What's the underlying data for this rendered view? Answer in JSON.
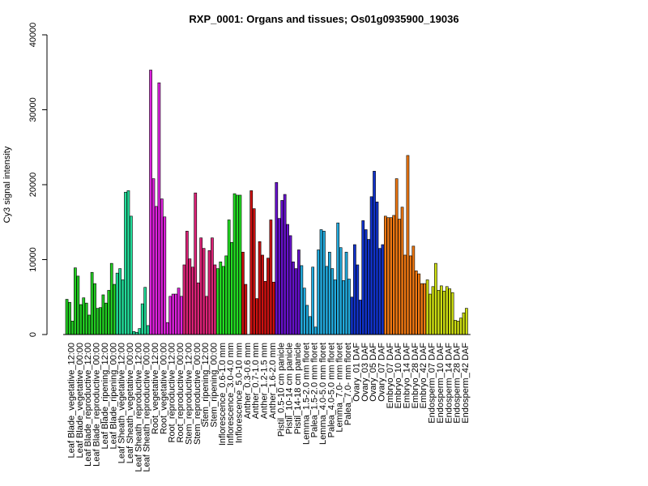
{
  "chart_data": {
    "type": "bar",
    "title": "RXP_0001: Organs and tissues; Os01g0935900_19036",
    "xlabel": "",
    "ylabel": "Cy3 signal intensity",
    "ylim": [
      0,
      40000
    ],
    "yticks": [
      0,
      10000,
      20000,
      30000,
      40000
    ],
    "grid": false,
    "legend": "none",
    "groups": [
      {
        "label": "Leaf Blade_vegetative_12:00",
        "color": "#22cc22",
        "values": [
          4700,
          4300,
          1800
        ]
      },
      {
        "label": "Leaf Blade_vegetative_00:00",
        "color": "#22cc22",
        "values": [
          8900,
          7800,
          4000
        ]
      },
      {
        "label": "Leaf Blade_reproductive_12:00",
        "color": "#22cc22",
        "values": [
          4900,
          4200,
          2600
        ]
      },
      {
        "label": "Leaf Blade_reproductive_00:00",
        "color": "#22cc22",
        "values": [
          8300,
          6800,
          3500
        ]
      },
      {
        "label": "Leaf Blade_ripening_12:00",
        "color": "#22cc22",
        "values": [
          3600,
          5300,
          4200
        ]
      },
      {
        "label": "Leaf Blade_ripening_00:00",
        "color": "#22cc22",
        "values": [
          5900,
          9500,
          6700
        ]
      },
      {
        "label": "Leaf Sheath_vegetative_12:00",
        "color": "#22dd99",
        "values": [
          8200,
          8800,
          7300
        ]
      },
      {
        "label": "Leaf Sheath_vegetative_00:00",
        "color": "#22dd99",
        "values": [
          19000,
          19200,
          15800
        ]
      },
      {
        "label": "Leaf Sheath_reproductive_12:00",
        "color": "#22dd99",
        "values": [
          400,
          300,
          800
        ]
      },
      {
        "label": "Leaf Sheath_reproductive_00:00",
        "color": "#22dd99",
        "values": [
          4100,
          6300,
          1200
        ]
      },
      {
        "label": "Root_vegetative_12:00",
        "color": "#dd22dd",
        "values": [
          35300,
          20800,
          17100
        ]
      },
      {
        "label": "Root_vegetative_00:00",
        "color": "#dd22dd",
        "values": [
          33600,
          18100,
          15700
        ]
      },
      {
        "label": "Root_reproductive_12:00",
        "color": "#dd22dd",
        "values": [
          1600,
          5100,
          5400
        ]
      },
      {
        "label": "Root_reproductive_00:00",
        "color": "#dd22dd",
        "values": [
          5400,
          6200,
          5100
        ]
      },
      {
        "label": "Stem_reproductive_12:00",
        "color": "#dd2277",
        "values": [
          9300,
          13800,
          10100
        ]
      },
      {
        "label": "Stem_reproductive_00:00",
        "color": "#dd2277",
        "values": [
          9000,
          18900,
          6900
        ]
      },
      {
        "label": "Stem_ripening_12:00",
        "color": "#dd2277",
        "values": [
          12900,
          11500,
          5100
        ]
      },
      {
        "label": "Stem_ripening_00:00",
        "color": "#dd2277",
        "values": [
          11200,
          12900,
          9300
        ]
      },
      {
        "label": "Inflorescence_0.6-1.0 mm",
        "color": "#22dd22",
        "values": [
          8800,
          9700,
          9100
        ]
      },
      {
        "label": "Inflorescence_3.0-4.0 mm",
        "color": "#22dd22",
        "values": [
          10500,
          15300,
          12300
        ]
      },
      {
        "label": "Inflorescence_5.0-10 mm",
        "color": "#22dd22",
        "values": [
          18800,
          18600,
          18600
        ]
      },
      {
        "label": "Anther_0.3-0.6 mm",
        "color": "#cc1111",
        "values": [
          11000,
          6700,
          0
        ]
      },
      {
        "label": "Anther_0.7-1.0 mm",
        "color": "#cc1111",
        "values": [
          19200,
          16800,
          4800
        ]
      },
      {
        "label": "Anther_1.2-1.5 mm",
        "color": "#cc1111",
        "values": [
          12400,
          10600,
          7100
        ]
      },
      {
        "label": "Anther_1.6-2.0 mm",
        "color": "#cc1111",
        "values": [
          10200,
          15300,
          7000
        ]
      },
      {
        "label": "Pistil_0.5-10 cm panicle",
        "color": "#6611cc",
        "values": [
          20300,
          15500,
          17900
        ]
      },
      {
        "label": "Pistil_10-14 cm panicle",
        "color": "#6611cc",
        "values": [
          18700,
          14700,
          13200
        ]
      },
      {
        "label": "Pistil_14-18 cm panicle",
        "color": "#6611cc",
        "values": [
          9700,
          8800,
          11300
        ]
      },
      {
        "label": "Lemma_1.5-2.0 mm floret",
        "color": "#22aadd",
        "values": [
          9200,
          6200,
          3900
        ]
      },
      {
        "label": "Palea_1.5-2.0 mm floret",
        "color": "#22aadd",
        "values": [
          2400,
          9000,
          1000
        ]
      },
      {
        "label": "Lemma_4.0-5.0 mm floret",
        "color": "#22aadd",
        "values": [
          11300,
          14000,
          13800
        ]
      },
      {
        "label": "Palea_4.0-5.0 mm floret",
        "color": "#22aadd",
        "values": [
          9100,
          11000,
          8800
        ]
      },
      {
        "label": "Lemma_7.0- mm floret",
        "color": "#22aadd",
        "values": [
          7300,
          14900,
          11600
        ]
      },
      {
        "label": "Palea_7.0- mm floret",
        "color": "#22aadd",
        "values": [
          7200,
          11000,
          7400
        ]
      },
      {
        "label": "Ovary_01 DAF",
        "color": "#1133cc",
        "values": [
          5000,
          12000,
          9300
        ]
      },
      {
        "label": "Ovary_03 DAF",
        "color": "#1133cc",
        "values": [
          4600,
          15200,
          14000
        ]
      },
      {
        "label": "Ovary_05 DAF",
        "color": "#1133cc",
        "values": [
          12700,
          18400,
          21800
        ]
      },
      {
        "label": "Ovary_07 DAF",
        "color": "#1133cc",
        "values": [
          17700,
          11500,
          12000
        ]
      },
      {
        "label": "Embryo_07 DAF",
        "color": "#ee7711",
        "values": [
          15800,
          15600,
          15600
        ]
      },
      {
        "label": "Embryo_10 DAF",
        "color": "#ee7711",
        "values": [
          15900,
          20800,
          15400
        ]
      },
      {
        "label": "Embryo_14 DAF",
        "color": "#ee7711",
        "values": [
          17000,
          10600,
          23900
        ]
      },
      {
        "label": "Embryo_28 DAF",
        "color": "#ee7711",
        "values": [
          10500,
          11800,
          8500
        ]
      },
      {
        "label": "Embryo_42 DAF",
        "color": "#ee7711",
        "values": [
          8100,
          6800,
          6800
        ]
      },
      {
        "label": "Endosperm_07 DAF",
        "color": "#ccdd11",
        "values": [
          7300,
          5400,
          6400
        ]
      },
      {
        "label": "Endosperm_10 DAF",
        "color": "#ccdd11",
        "values": [
          9500,
          5900,
          6500
        ]
      },
      {
        "label": "Endosperm_14 DAF",
        "color": "#ccdd11",
        "values": [
          5800,
          6400,
          6100
        ]
      },
      {
        "label": "Endosperm_28 DAF",
        "color": "#ccdd11",
        "values": [
          5600,
          1900,
          1800
        ]
      },
      {
        "label": "Endosperm_42 DAF",
        "color": "#ccdd11",
        "values": [
          2200,
          2900,
          3500
        ]
      }
    ]
  }
}
